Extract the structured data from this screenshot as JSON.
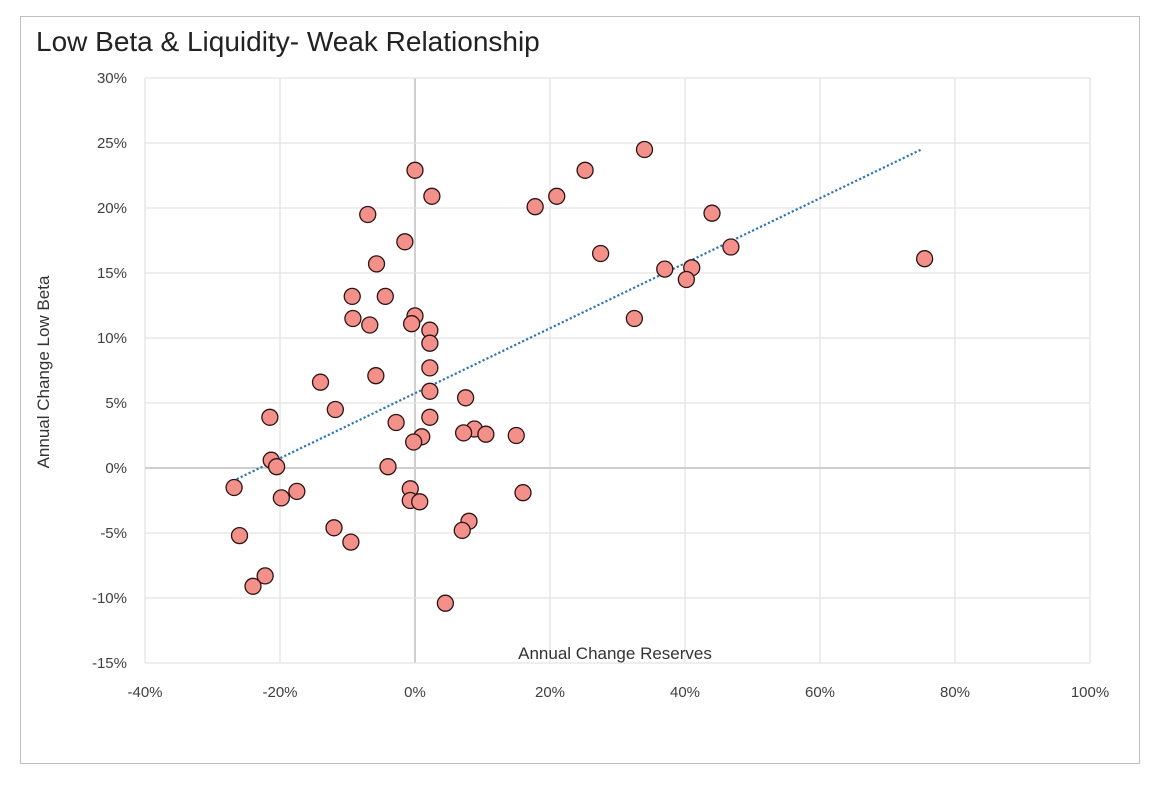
{
  "chart_data": {
    "type": "scatter",
    "title": "Low Beta & Liquidity- Weak Relationship",
    "xlabel": "Annual Change Reserves",
    "ylabel": "Annual Change Low Beta",
    "xlim": [
      -0.4,
      1.0
    ],
    "ylim": [
      -0.15,
      0.3
    ],
    "x_ticks": [
      -0.4,
      -0.2,
      0.0,
      0.2,
      0.4,
      0.6,
      0.8,
      1.0
    ],
    "x_tick_labels": [
      "-40%",
      "-20%",
      "0%",
      "20%",
      "40%",
      "60%",
      "80%",
      "100%"
    ],
    "y_ticks": [
      -0.15,
      -0.1,
      -0.05,
      0.0,
      0.05,
      0.1,
      0.15,
      0.2,
      0.25,
      0.3
    ],
    "y_tick_labels": [
      "-15%",
      "-10%",
      "-5%",
      "0%",
      "5%",
      "10%",
      "15%",
      "20%",
      "25%",
      "30%"
    ],
    "grid": true,
    "legend": "none",
    "marker_color": "#f4908a",
    "marker_edge_color": "#2b1414",
    "trendline": {
      "type": "linear",
      "style": "dotted",
      "color": "#2e75b6",
      "x": [
        -0.27,
        0.75
      ],
      "y": [
        -0.01,
        0.245
      ]
    },
    "points": [
      {
        "x": 0.34,
        "y": 0.245
      },
      {
        "x": 0.0,
        "y": 0.229
      },
      {
        "x": 0.025,
        "y": 0.209
      },
      {
        "x": 0.252,
        "y": 0.229
      },
      {
        "x": 0.21,
        "y": 0.209
      },
      {
        "x": 0.178,
        "y": 0.201
      },
      {
        "x": 0.44,
        "y": 0.196
      },
      {
        "x": -0.07,
        "y": 0.195
      },
      {
        "x": -0.015,
        "y": 0.174
      },
      {
        "x": 0.468,
        "y": 0.17
      },
      {
        "x": 0.275,
        "y": 0.165
      },
      {
        "x": 0.755,
        "y": 0.161
      },
      {
        "x": -0.057,
        "y": 0.157
      },
      {
        "x": 0.37,
        "y": 0.153
      },
      {
        "x": 0.41,
        "y": 0.154
      },
      {
        "x": 0.402,
        "y": 0.145
      },
      {
        "x": -0.093,
        "y": 0.132
      },
      {
        "x": -0.044,
        "y": 0.132
      },
      {
        "x": 0.0,
        "y": 0.117
      },
      {
        "x": -0.092,
        "y": 0.115
      },
      {
        "x": 0.325,
        "y": 0.115
      },
      {
        "x": -0.067,
        "y": 0.11
      },
      {
        "x": -0.005,
        "y": 0.111
      },
      {
        "x": 0.022,
        "y": 0.106
      },
      {
        "x": 0.022,
        "y": 0.096
      },
      {
        "x": 0.022,
        "y": 0.077
      },
      {
        "x": -0.058,
        "y": 0.071
      },
      {
        "x": -0.14,
        "y": 0.066
      },
      {
        "x": 0.022,
        "y": 0.059
      },
      {
        "x": 0.075,
        "y": 0.054
      },
      {
        "x": -0.118,
        "y": 0.045
      },
      {
        "x": -0.215,
        "y": 0.039
      },
      {
        "x": 0.022,
        "y": 0.039
      },
      {
        "x": -0.028,
        "y": 0.035
      },
      {
        "x": 0.088,
        "y": 0.03
      },
      {
        "x": 0.072,
        "y": 0.027
      },
      {
        "x": 0.105,
        "y": 0.026
      },
      {
        "x": 0.15,
        "y": 0.025
      },
      {
        "x": 0.01,
        "y": 0.024
      },
      {
        "x": -0.002,
        "y": 0.02
      },
      {
        "x": -0.213,
        "y": 0.006
      },
      {
        "x": -0.205,
        "y": 0.001
      },
      {
        "x": -0.04,
        "y": 0.001
      },
      {
        "x": -0.268,
        "y": -0.015
      },
      {
        "x": -0.007,
        "y": -0.016
      },
      {
        "x": -0.175,
        "y": -0.018
      },
      {
        "x": 0.16,
        "y": -0.019
      },
      {
        "x": -0.198,
        "y": -0.023
      },
      {
        "x": -0.007,
        "y": -0.025
      },
      {
        "x": 0.007,
        "y": -0.026
      },
      {
        "x": 0.08,
        "y": -0.041
      },
      {
        "x": -0.12,
        "y": -0.046
      },
      {
        "x": 0.07,
        "y": -0.048
      },
      {
        "x": -0.26,
        "y": -0.052
      },
      {
        "x": -0.095,
        "y": -0.057
      },
      {
        "x": -0.222,
        "y": -0.083
      },
      {
        "x": -0.24,
        "y": -0.091
      },
      {
        "x": 0.045,
        "y": -0.104
      }
    ]
  }
}
